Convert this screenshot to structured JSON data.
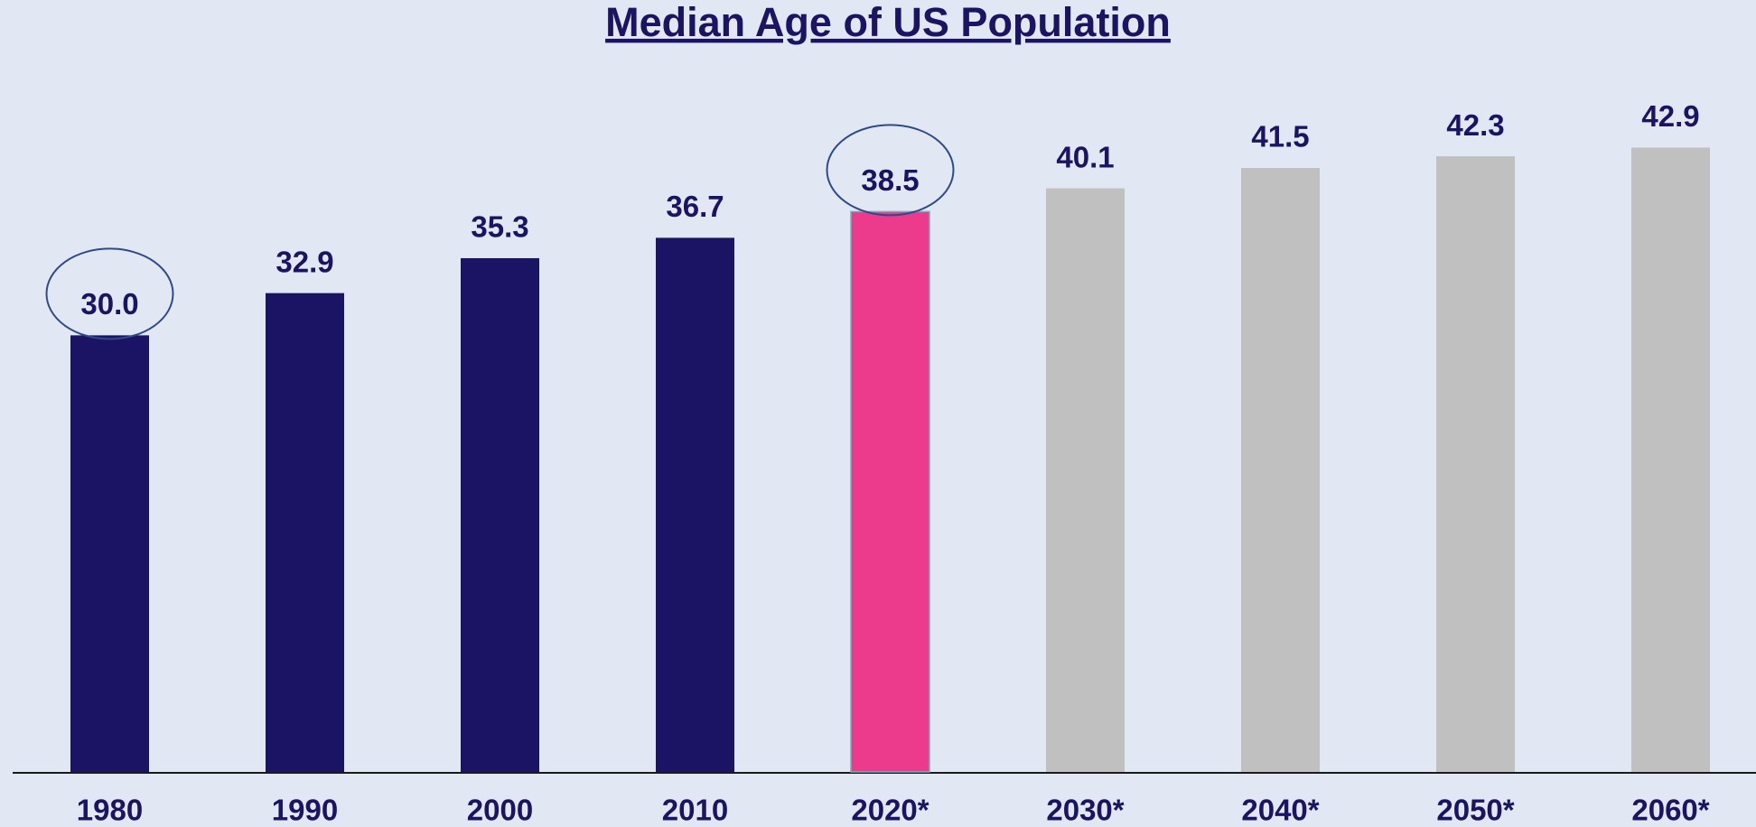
{
  "chart_data": {
    "type": "bar",
    "title": "Median Age of US Population",
    "categories": [
      "1980",
      "1990",
      "2000",
      "2010",
      "2020*",
      "2030*",
      "2040*",
      "2050*",
      "2060*"
    ],
    "values": [
      30.0,
      32.9,
      35.3,
      36.7,
      38.5,
      40.1,
      41.5,
      42.3,
      42.9
    ],
    "value_labels": [
      "30.0",
      "32.9",
      "35.3",
      "36.7",
      "38.5",
      "40.1",
      "41.5",
      "42.3",
      "42.9"
    ],
    "colors": [
      "#1b1464",
      "#1b1464",
      "#1b1464",
      "#1b1464",
      "#ec3b8c",
      "#c0c0c0",
      "#c0c0c0",
      "#c0c0c0",
      "#c0c0c0"
    ],
    "ylim": [
      0,
      50
    ]
  }
}
